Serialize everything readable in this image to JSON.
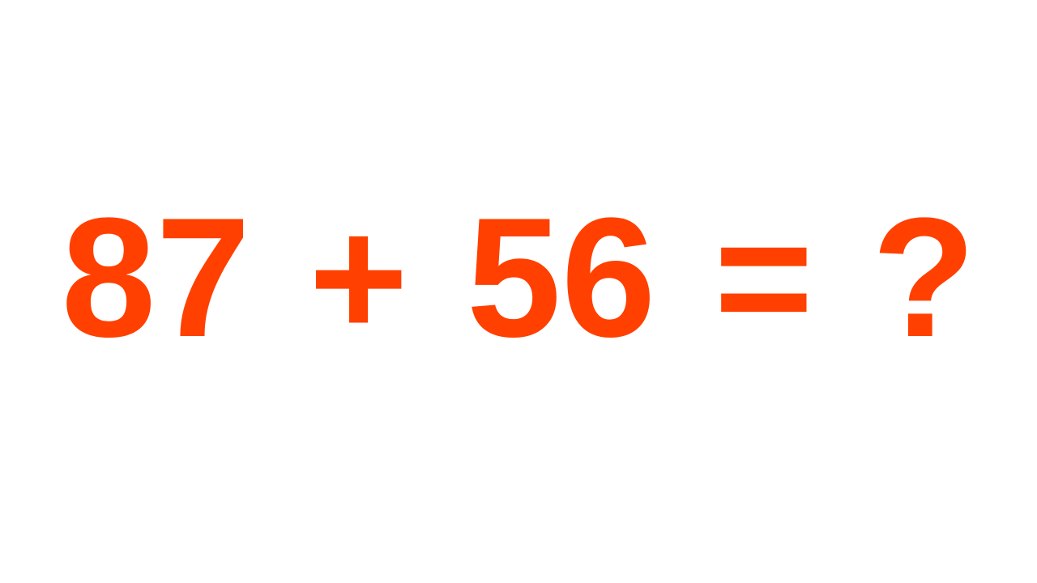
{
  "equation": {
    "operand_a": "87",
    "operator": "+",
    "operand_b": "56",
    "equals": "=",
    "unknown": "?"
  },
  "colors": {
    "text": "#ff4000",
    "background": "#ffffff"
  }
}
